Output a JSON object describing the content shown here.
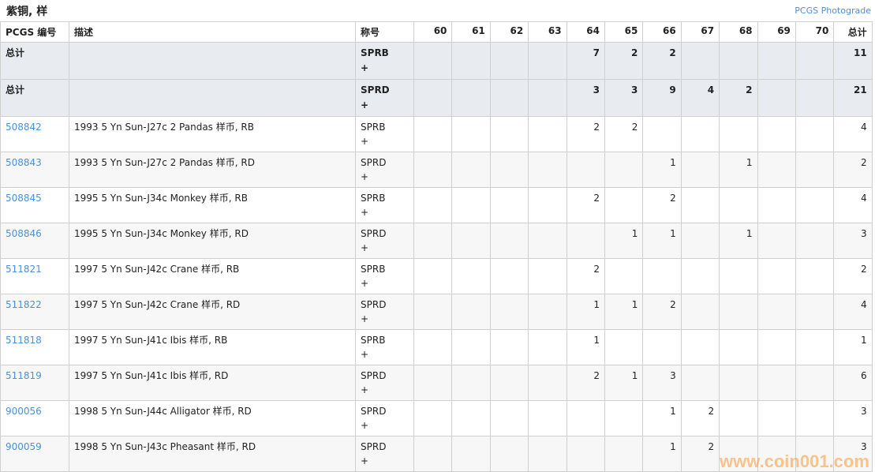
{
  "title": "紫铜, 样",
  "photograde_link": "PCGS Photograde",
  "headers": [
    "PCGS 编号",
    "描述",
    "称号",
    "60",
    "61",
    "62",
    "63",
    "64",
    "65",
    "66",
    "67",
    "68",
    "69",
    "70",
    "总计"
  ],
  "totals": [
    {
      "label": "总计",
      "designation": "SPRB +",
      "grades": [
        "",
        "",
        "",
        "",
        "7",
        "2",
        "2",
        "",
        "",
        "",
        ""
      ],
      "total": "11"
    },
    {
      "label": "总计",
      "designation": "SPRD +",
      "grades": [
        "",
        "",
        "",
        "",
        "3",
        "3",
        "9",
        "4",
        "2",
        "",
        ""
      ],
      "total": "21"
    }
  ],
  "rows": [
    {
      "pcgs": "508842",
      "desc": "1993 5 Yn Sun-J27c 2 Pandas 样币, RB",
      "designation": "SPRB +",
      "grades": [
        "",
        "",
        "",
        "",
        "2",
        "2",
        "",
        "",
        "",
        "",
        ""
      ],
      "total": "4"
    },
    {
      "pcgs": "508843",
      "desc": "1993 5 Yn Sun-J27c 2 Pandas 样币, RD",
      "designation": "SPRD +",
      "grades": [
        "",
        "",
        "",
        "",
        "",
        "",
        "1",
        "",
        "1",
        "",
        ""
      ],
      "total": "2"
    },
    {
      "pcgs": "508845",
      "desc": "1995 5 Yn Sun-J34c Monkey 样币, RB",
      "designation": "SPRB +",
      "grades": [
        "",
        "",
        "",
        "",
        "2",
        "",
        "2",
        "",
        "",
        "",
        ""
      ],
      "total": "4"
    },
    {
      "pcgs": "508846",
      "desc": "1995 5 Yn Sun-J34c Monkey 样币, RD",
      "designation": "SPRD +",
      "grades": [
        "",
        "",
        "",
        "",
        "",
        "1",
        "1",
        "",
        "1",
        "",
        ""
      ],
      "total": "3"
    },
    {
      "pcgs": "511821",
      "desc": "1997 5 Yn Sun-J42c Crane 样币, RB",
      "designation": "SPRB +",
      "grades": [
        "",
        "",
        "",
        "",
        "2",
        "",
        "",
        "",
        "",
        "",
        ""
      ],
      "total": "2"
    },
    {
      "pcgs": "511822",
      "desc": "1997 5 Yn Sun-J42c Crane 样币, RD",
      "designation": "SPRD +",
      "grades": [
        "",
        "",
        "",
        "",
        "1",
        "1",
        "2",
        "",
        "",
        "",
        ""
      ],
      "total": "4"
    },
    {
      "pcgs": "511818",
      "desc": "1997 5 Yn Sun-J41c Ibis 样币, RB",
      "designation": "SPRB +",
      "grades": [
        "",
        "",
        "",
        "",
        "1",
        "",
        "",
        "",
        "",
        "",
        ""
      ],
      "total": "1"
    },
    {
      "pcgs": "511819",
      "desc": "1997 5 Yn Sun-J41c Ibis 样币, RD",
      "designation": "SPRD +",
      "grades": [
        "",
        "",
        "",
        "",
        "2",
        "1",
        "3",
        "",
        "",
        "",
        ""
      ],
      "total": "6"
    },
    {
      "pcgs": "900056",
      "desc": "1998 5 Yn Sun-J44c Alligator 样币, RD",
      "designation": "SPRD +",
      "grades": [
        "",
        "",
        "",
        "",
        "",
        "",
        "1",
        "2",
        "",
        "",
        ""
      ],
      "total": "3"
    },
    {
      "pcgs": "900059",
      "desc": "1998 5 Yn Sun-J43c Pheasant 样币, RD",
      "designation": "SPRD +",
      "grades": [
        "",
        "",
        "",
        "",
        "",
        "",
        "1",
        "2",
        "",
        "",
        ""
      ],
      "total": "3"
    }
  ],
  "watermark": "www.coin001.com"
}
